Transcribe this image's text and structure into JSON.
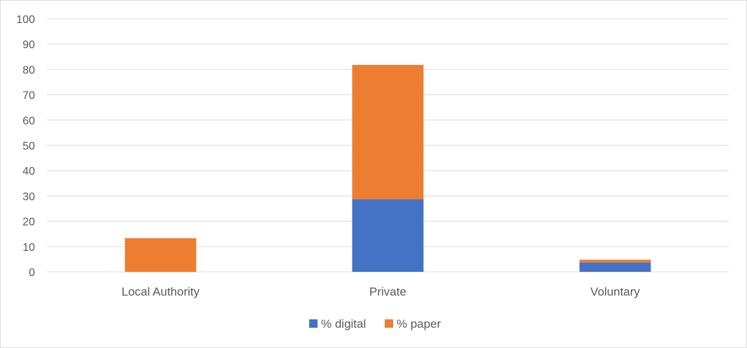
{
  "chart_data": {
    "type": "bar",
    "stacked": true,
    "title": "",
    "xlabel": "",
    "ylabel": "",
    "categories": [
      "Local Authority",
      "Private",
      "Voluntary"
    ],
    "series": [
      {
        "name": "% digital",
        "values": [
          0,
          28.7,
          3.7
        ],
        "color": "#4472C4"
      },
      {
        "name": "% paper",
        "values": [
          13.3,
          53.1,
          1.1
        ],
        "color": "#ED7D31"
      }
    ],
    "ylim": [
      0,
      100
    ],
    "yticks": [
      "0",
      "10",
      "20",
      "30",
      "40",
      "50",
      "60",
      "70",
      "80",
      "90",
      "100"
    ],
    "grid": true,
    "legend_position": "bottom"
  }
}
